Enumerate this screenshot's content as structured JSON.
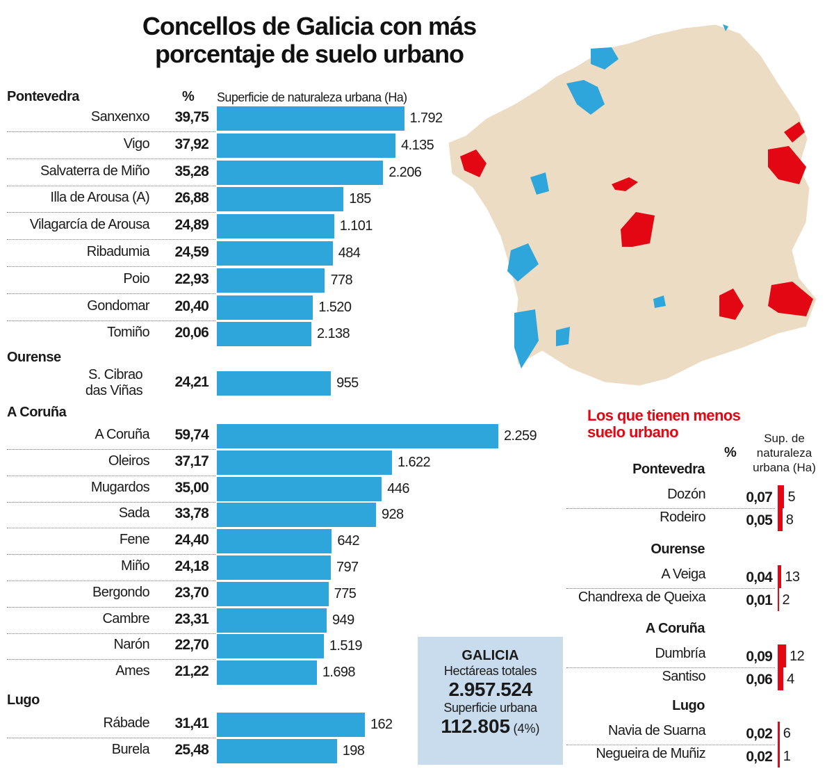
{
  "title_line1": "Concellos de Galicia con más",
  "title_line2": "porcentaje de suelo urbano",
  "colors": {
    "bar": "#2ea6dc",
    "low_bar": "#e30613",
    "map_land": "#eddcc4",
    "map_high": "#2ea6dc",
    "map_low": "#e30613",
    "summary_box": "#c9dced"
  },
  "chart_data": {
    "type": "bar",
    "orientation": "horizontal",
    "title": "Concellos de Galicia con más porcentaje de suelo urbano",
    "pct_header": "%",
    "value_header": "Superficie de naturaleza urbana (Ha)",
    "groups": [
      {
        "province": "Pontevedra",
        "rows": [
          {
            "name": "Sanxenxo",
            "pct": "39,75",
            "pct_value": 39.75,
            "ha": "1.792"
          },
          {
            "name": "Vigo",
            "pct": "37,92",
            "pct_value": 37.92,
            "ha": "4.135"
          },
          {
            "name": "Salvaterra de Miño",
            "pct": "35,28",
            "pct_value": 35.28,
            "ha": "2.206"
          },
          {
            "name": "Illa de Arousa (A)",
            "pct": "26,88",
            "pct_value": 26.88,
            "ha": "185"
          },
          {
            "name": "Vilagarcía de Arousa",
            "pct": "24,89",
            "pct_value": 24.89,
            "ha": "1.101"
          },
          {
            "name": "Ribadumia",
            "pct": "24,59",
            "pct_value": 24.59,
            "ha": "484"
          },
          {
            "name": "Poio",
            "pct": "22,93",
            "pct_value": 22.93,
            "ha": "778"
          },
          {
            "name": "Gondomar",
            "pct": "20,40",
            "pct_value": 20.4,
            "ha": "1.520"
          },
          {
            "name": "Tomiño",
            "pct": "20,06",
            "pct_value": 20.06,
            "ha": "2.138"
          }
        ]
      },
      {
        "province": "Ourense",
        "rows": [
          {
            "name": "S. Cibrao das Viñas",
            "name_l1": "S. Cibrao",
            "name_l2": "das Viñas",
            "pct": "24,21",
            "pct_value": 24.21,
            "ha": "955"
          }
        ]
      },
      {
        "province": "A Coruña",
        "rows": [
          {
            "name": "A Coruña",
            "pct": "59,74",
            "pct_value": 59.74,
            "ha": "2.259"
          },
          {
            "name": "Oleiros",
            "pct": "37,17",
            "pct_value": 37.17,
            "ha": "1.622"
          },
          {
            "name": "Mugardos",
            "pct": "35,00",
            "pct_value": 35.0,
            "ha": "446"
          },
          {
            "name": "Sada",
            "pct": "33,78",
            "pct_value": 33.78,
            "ha": "928"
          },
          {
            "name": "Fene",
            "pct": "24,40",
            "pct_value": 24.4,
            "ha": "642"
          },
          {
            "name": "Miño",
            "pct": "24,18",
            "pct_value": 24.18,
            "ha": "797"
          },
          {
            "name": "Bergondo",
            "pct": "23,70",
            "pct_value": 23.7,
            "ha": "775"
          },
          {
            "name": "Cambre",
            "pct": "23,31",
            "pct_value": 23.31,
            "ha": "949"
          },
          {
            "name": "Narón",
            "pct": "22,70",
            "pct_value": 22.7,
            "ha": "1.519"
          },
          {
            "name": "Ames",
            "pct": "21,22",
            "pct_value": 21.22,
            "ha": "1.698"
          }
        ]
      },
      {
        "province": "Lugo",
        "rows": [
          {
            "name": "Rábade",
            "pct": "31,41",
            "pct_value": 31.41,
            "ha": "162"
          },
          {
            "name": "Burela",
            "pct": "25,48",
            "pct_value": 25.48,
            "ha": "198"
          }
        ]
      }
    ]
  },
  "summary": {
    "label": "GALICIA",
    "total_label": "Hectáreas totales",
    "total": "2.957.524",
    "urban_label": "Superficie urbana",
    "urban": "112.805",
    "urban_pct": "(4%)"
  },
  "low": {
    "title_l1": "Los que tienen menos",
    "title_l2": "suelo urbano",
    "pct_header": "%",
    "value_header": "Sup. de naturaleza urbana (Ha)",
    "groups": [
      {
        "province": "Pontevedra",
        "rows": [
          {
            "name": "Dozón",
            "pct": "0,07",
            "pct_value": 0.07,
            "ha": "5"
          },
          {
            "name": "Rodeiro",
            "pct": "0,05",
            "pct_value": 0.05,
            "ha": "8"
          }
        ]
      },
      {
        "province": "Ourense",
        "rows": [
          {
            "name": "A Veiga",
            "pct": "0,04",
            "pct_value": 0.04,
            "ha": "13"
          },
          {
            "name": "Chandrexa de Queixa",
            "pct": "0,01",
            "pct_value": 0.01,
            "ha": "2"
          }
        ]
      },
      {
        "province": "A Coruña",
        "rows": [
          {
            "name": "Dumbría",
            "pct": "0,09",
            "pct_value": 0.09,
            "ha": "12"
          },
          {
            "name": "Santiso",
            "pct": "0,06",
            "pct_value": 0.06,
            "ha": "4"
          }
        ]
      },
      {
        "province": "Lugo",
        "rows": [
          {
            "name": "Navia de Suarna",
            "pct": "0,02",
            "pct_value": 0.02,
            "ha": "6"
          },
          {
            "name": "Negueira de Muñiz",
            "pct": "0,02",
            "pct_value": 0.02,
            "ha": "1"
          }
        ]
      }
    ]
  }
}
